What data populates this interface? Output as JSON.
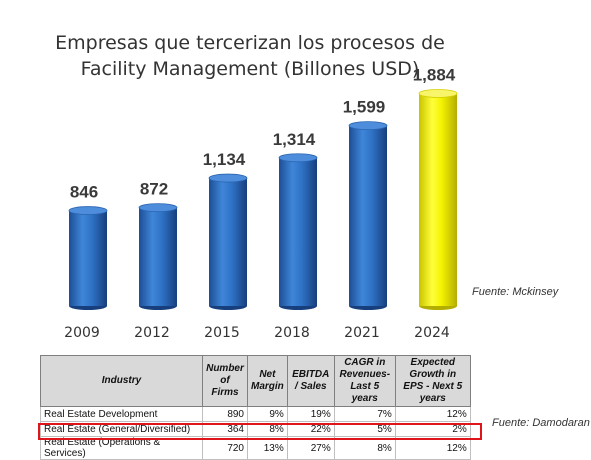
{
  "chart_data": {
    "type": "bar",
    "title": [
      "Empresas que tercerizan los procesos de",
      "Facility Management (Billones USD)"
    ],
    "categories": [
      "2009",
      "2012",
      "2015",
      "2018",
      "2021",
      "2024"
    ],
    "values": [
      846,
      872,
      1134,
      1314,
      1599,
      1884
    ],
    "value_labels": [
      "846",
      "872",
      "1,134",
      "1,314",
      "1,599",
      "1,884"
    ],
    "colors": [
      "#2e6ec2",
      "#2e6ec2",
      "#2e6ec2",
      "#2e6ec2",
      "#2e6ec2",
      "#f2f200"
    ],
    "grid": false,
    "legend": "none"
  },
  "source_chart": "Fuente: Mckinsey",
  "source_table": "Fuente: Damodaran",
  "table": {
    "headers": [
      "Industry",
      "Number of Firms",
      "Net Margin",
      "EBITDA / Sales",
      "CAGR in Revenues- Last 5 years",
      "Expected Growth in EPS - Next 5 years"
    ],
    "rows": [
      [
        "Real Estate Development",
        "890",
        "9%",
        "19%",
        "7%",
        "12%"
      ],
      [
        "Real Estate (General/Diversified)",
        "364",
        "8%",
        "22%",
        "5%",
        "2%"
      ],
      [
        "Real Estate (Operations & Services)",
        "720",
        "13%",
        "27%",
        "8%",
        "12%"
      ]
    ]
  }
}
